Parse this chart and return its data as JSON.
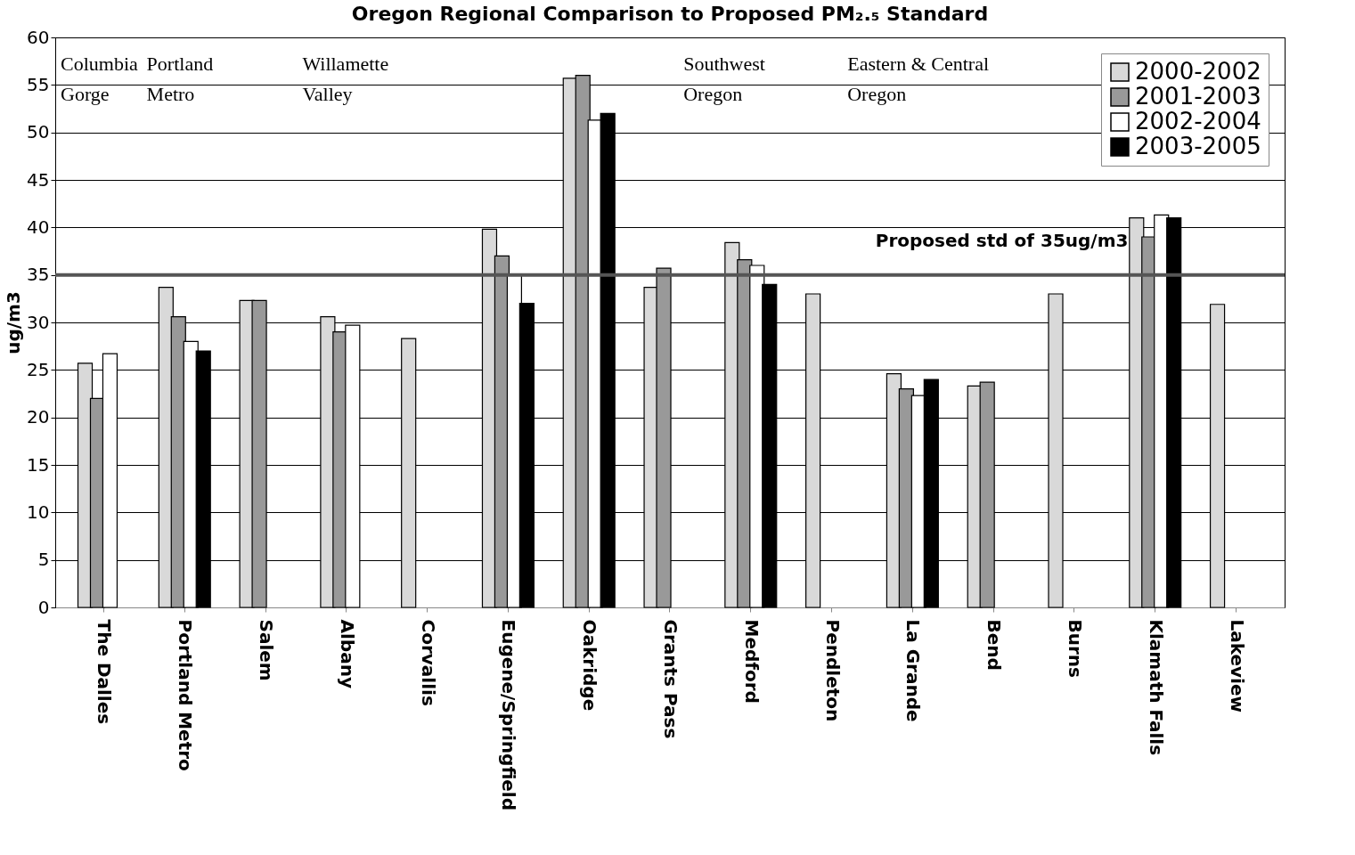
{
  "chart_data": {
    "type": "bar",
    "title": "Oregon Regional Comparison to Proposed PM₂.₅ Standard",
    "ylabel": "ug/m3",
    "categories": [
      "The Dalles",
      "Portland Metro",
      "Salem",
      "Albany",
      "Corvallis",
      "Eugene/Springfield",
      "Oakridge",
      "Grants Pass",
      "Medford",
      "Pendleton",
      "La Grande",
      "Bend",
      "Burns",
      "Klamath Falls",
      "Lakeview"
    ],
    "series": [
      {
        "name": "2000-2002",
        "color": "#d9d9d9",
        "values": [
          25.7,
          33.7,
          32.3,
          30.6,
          28.3,
          39.8,
          55.7,
          33.7,
          38.4,
          33,
          24.6,
          23.3,
          33,
          41,
          31.9
        ]
      },
      {
        "name": "2001-2003",
        "color": "#999999",
        "values": [
          22,
          30.6,
          32.3,
          29,
          null,
          37,
          56,
          35.7,
          36.6,
          null,
          23,
          23.7,
          null,
          39,
          null
        ]
      },
      {
        "name": "2002-2004",
        "color": "#ffffff",
        "values": [
          26.7,
          28,
          null,
          29.7,
          null,
          35,
          51.3,
          null,
          36,
          null,
          22.3,
          null,
          null,
          41.3,
          null
        ]
      },
      {
        "name": "2003-2005",
        "color": "#000000",
        "values": [
          null,
          27,
          null,
          null,
          null,
          32,
          52,
          null,
          34,
          null,
          24,
          null,
          null,
          41,
          null
        ]
      }
    ],
    "ylim": [
      0,
      60
    ],
    "yticks": [
      0,
      5,
      10,
      15,
      20,
      25,
      30,
      35,
      40,
      45,
      50,
      55,
      60
    ],
    "grid": "y",
    "legend": "top right",
    "ref_lines": [
      {
        "axis": "y",
        "value": 35,
        "label": "Proposed std of 35ug/m3",
        "color": "#555555"
      }
    ],
    "annotations": [
      "Columbia\nGorge",
      "Portland\nMetro",
      "Willamette\nValley",
      "Southwest\nOregon",
      "Eastern & Central\nOregon"
    ]
  }
}
